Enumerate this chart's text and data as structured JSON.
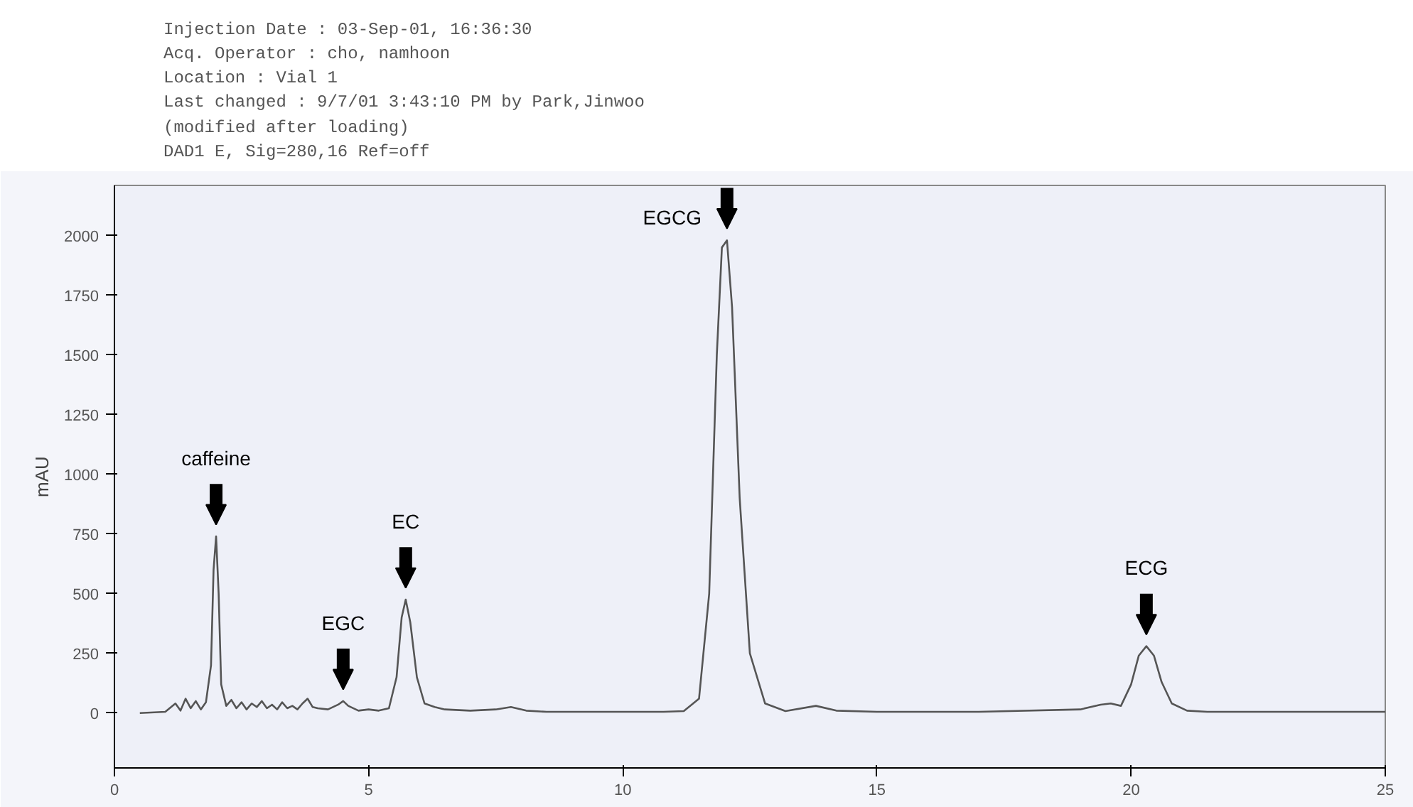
{
  "chart_data": {
    "type": "line",
    "ylabel": "mAU",
    "x": [
      0.5,
      1.0,
      1.2,
      1.3,
      1.4,
      1.5,
      1.6,
      1.7,
      1.8,
      1.9,
      1.95,
      2.0,
      2.05,
      2.1,
      2.2,
      2.3,
      2.4,
      2.5,
      2.6,
      2.7,
      2.8,
      2.9,
      3.0,
      3.1,
      3.2,
      3.3,
      3.4,
      3.5,
      3.6,
      3.7,
      3.8,
      3.9,
      4.0,
      4.2,
      4.4,
      4.5,
      4.6,
      4.8,
      5.0,
      5.2,
      5.4,
      5.55,
      5.65,
      5.73,
      5.82,
      5.95,
      6.1,
      6.3,
      6.5,
      7.0,
      7.5,
      7.8,
      8.1,
      8.5,
      9.0,
      10.0,
      10.8,
      11.2,
      11.5,
      11.7,
      11.85,
      11.95,
      12.05,
      12.15,
      12.3,
      12.5,
      12.8,
      13.2,
      13.8,
      14.2,
      15.0,
      17.0,
      19.0,
      19.4,
      19.6,
      19.8,
      20.0,
      20.15,
      20.3,
      20.45,
      20.6,
      20.8,
      21.1,
      21.5,
      22.0,
      24.0,
      25.0
    ],
    "values": [
      0,
      5,
      40,
      10,
      60,
      20,
      50,
      15,
      45,
      200,
      600,
      740,
      500,
      120,
      30,
      55,
      20,
      45,
      15,
      40,
      25,
      50,
      20,
      35,
      15,
      45,
      20,
      30,
      15,
      40,
      60,
      25,
      20,
      15,
      35,
      50,
      30,
      10,
      15,
      10,
      20,
      150,
      400,
      475,
      380,
      150,
      40,
      25,
      15,
      10,
      15,
      25,
      10,
      5,
      5,
      5,
      5,
      8,
      60,
      500,
      1500,
      1950,
      1980,
      1700,
      900,
      250,
      40,
      8,
      30,
      10,
      5,
      5,
      15,
      35,
      40,
      30,
      120,
      240,
      280,
      240,
      130,
      40,
      10,
      5,
      5,
      5,
      5
    ],
    "color": "#555555",
    "xlim": [
      0,
      25
    ],
    "ylim": [
      -230,
      2210
    ],
    "xticks": [
      0,
      5,
      10,
      15,
      20,
      25
    ],
    "yticks": [
      0,
      250,
      500,
      750,
      1000,
      1250,
      1500,
      1750,
      2000
    ],
    "grid": false,
    "annotations": [
      "Injection Date : 03-Sep-01, 16:36:30",
      "Acq. Operator : cho, namhoon",
      "Location : Vial 1",
      "Last changed : 9/7/01 3:43:10 PM by Park,Jinwoo",
      "(modified after loading)",
      "DAD1 E, Sig=280,16 Ref=off",
      {
        "text": "caffeine",
        "x": 2.0,
        "y": 740
      },
      {
        "text": "EGC",
        "x": 4.5,
        "y": 50
      },
      {
        "text": "EC",
        "x": 5.73,
        "y": 475
      },
      {
        "text": "EGCG",
        "x": 12.05,
        "y": 1980
      },
      {
        "text": "ECG",
        "x": 20.3,
        "y": 280
      }
    ]
  }
}
